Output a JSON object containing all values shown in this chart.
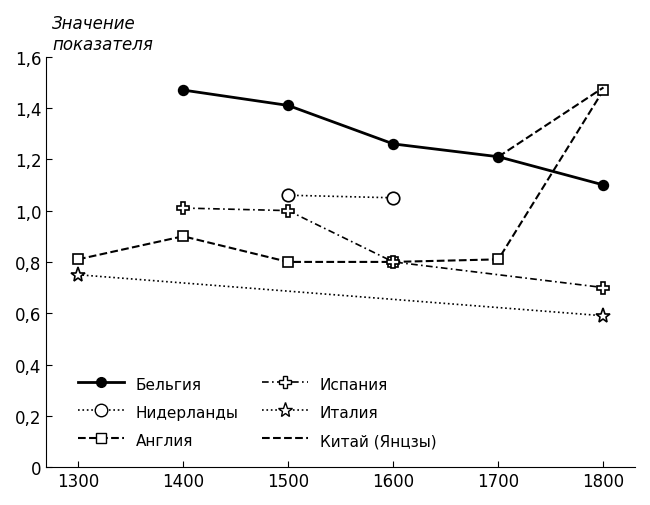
{
  "x": [
    1300,
    1400,
    1500,
    1600,
    1700,
    1800
  ],
  "series": {
    "Бельгия": [
      null,
      1.47,
      1.41,
      1.26,
      1.21,
      1.1
    ],
    "Нидерланды": [
      null,
      null,
      1.06,
      1.05,
      null,
      null
    ],
    "Англия": [
      0.81,
      0.9,
      0.8,
      0.8,
      0.81,
      1.47
    ],
    "Испания": [
      null,
      1.01,
      1.0,
      0.8,
      null,
      0.7
    ],
    "Италия": [
      0.75,
      null,
      null,
      null,
      null,
      0.59
    ],
    "Китай (Янцзы)": [
      null,
      null,
      null,
      null,
      1.21,
      1.48
    ]
  },
  "ylabel": "Значение\nпоказателя",
  "ylim": [
    0,
    1.6
  ],
  "yticks": [
    0,
    0.2,
    0.4,
    0.6,
    0.8,
    1.0,
    1.2,
    1.4,
    1.6
  ],
  "ytick_labels": [
    "0",
    "0,2",
    "0,4",
    "0,6",
    "0,8",
    "1,0",
    "1,2",
    "1,4",
    "1,6"
  ],
  "xlim": [
    1270,
    1830
  ],
  "xticks": [
    1300,
    1400,
    1500,
    1600,
    1700,
    1800
  ],
  "background_color": "#ffffff"
}
